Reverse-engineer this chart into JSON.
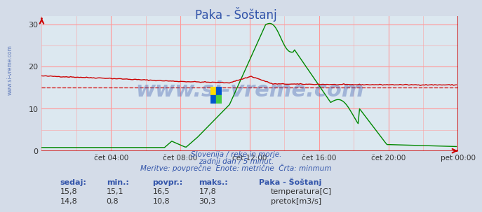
{
  "title": "Paka - Šoštanj",
  "bg_color": "#d4dce8",
  "plot_bg_color": "#dce8f0",
  "grid_color": "#ff9999",
  "temp_color": "#cc0000",
  "flow_color": "#008800",
  "dashed_line_value": 15.1,
  "ylim": [
    0,
    32
  ],
  "yticks": [
    0,
    10,
    20,
    30
  ],
  "n_points": 288,
  "xtick_labels": [
    "čet 04:00",
    "čet 08:00",
    "čet 12:00",
    "čet 16:00",
    "čet 20:00",
    "pet 00:00"
  ],
  "xtick_positions": [
    48,
    96,
    144,
    192,
    240,
    288
  ],
  "subtitle1": "Slovenija / reke in morje.",
  "subtitle2": "zadnji dan / 5 minut.",
  "subtitle3": "Meritve: povprečne  Enote: metrične  Črta: minmum",
  "subtitle_color": "#3355aa",
  "watermark": "www.si-vreme.com",
  "watermark_color": "#3355aa",
  "left_label": "www.si-vreme.com",
  "table_cols": [
    "sedaj:",
    "min.:",
    "povpr.:",
    "maks.:",
    "Paka - Šoštanj"
  ],
  "table_row1_vals": [
    "15,8",
    "15,1",
    "16,5",
    "17,8"
  ],
  "table_row1_label": "temperatura[C]",
  "table_row1_color": "#cc0000",
  "table_row2_vals": [
    "14,8",
    "0,8",
    "10,8",
    "30,3"
  ],
  "table_row2_label": "pretok[m3/s]",
  "table_row2_color": "#008800"
}
